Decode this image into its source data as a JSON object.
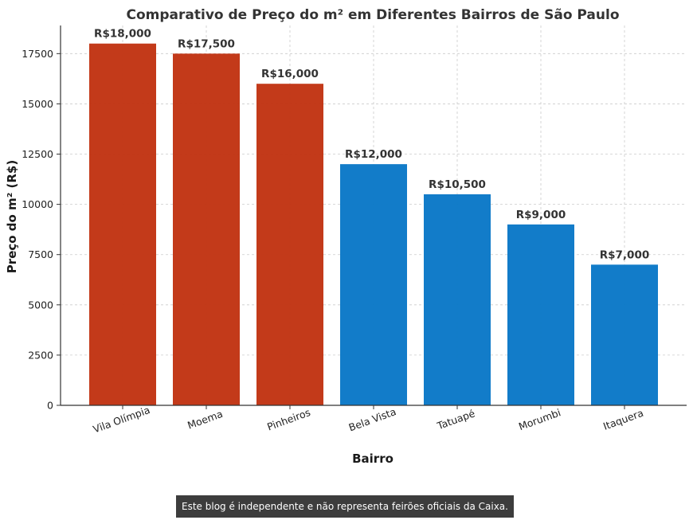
{
  "chart_data": {
    "type": "bar",
    "title": "Comparativo de Preço do m² em Diferentes Bairros de São Paulo",
    "xlabel": "Bairro",
    "ylabel": "Preço do m² (R$)",
    "categories": [
      "Vila Olímpia",
      "Moema",
      "Pinheiros",
      "Bela Vista",
      "Tatuapé",
      "Morumbi",
      "Itaquera"
    ],
    "values": [
      18000,
      17500,
      16000,
      12000,
      10500,
      9000,
      7000
    ],
    "value_labels": [
      "R$18,000",
      "R$17,500",
      "R$16,000",
      "R$12,000",
      "R$10,500",
      "R$9,000",
      "R$7,000"
    ],
    "bar_colors": [
      "#c13413",
      "#c13413",
      "#c13413",
      "#0a78c7",
      "#0a78c7",
      "#0a78c7",
      "#0a78c7"
    ],
    "ylim": [
      0,
      18900
    ],
    "yticks": [
      0,
      2500,
      5000,
      7500,
      10000,
      12500,
      15000,
      17500
    ],
    "ytick_labels": [
      "0",
      "2500",
      "5000",
      "7500",
      "10000",
      "12500",
      "15000",
      "17500"
    ],
    "grid": true,
    "legend": "none"
  },
  "footer": {
    "disclaimer": "Este blog é independente e não representa feirões oficiais da Caixa."
  }
}
